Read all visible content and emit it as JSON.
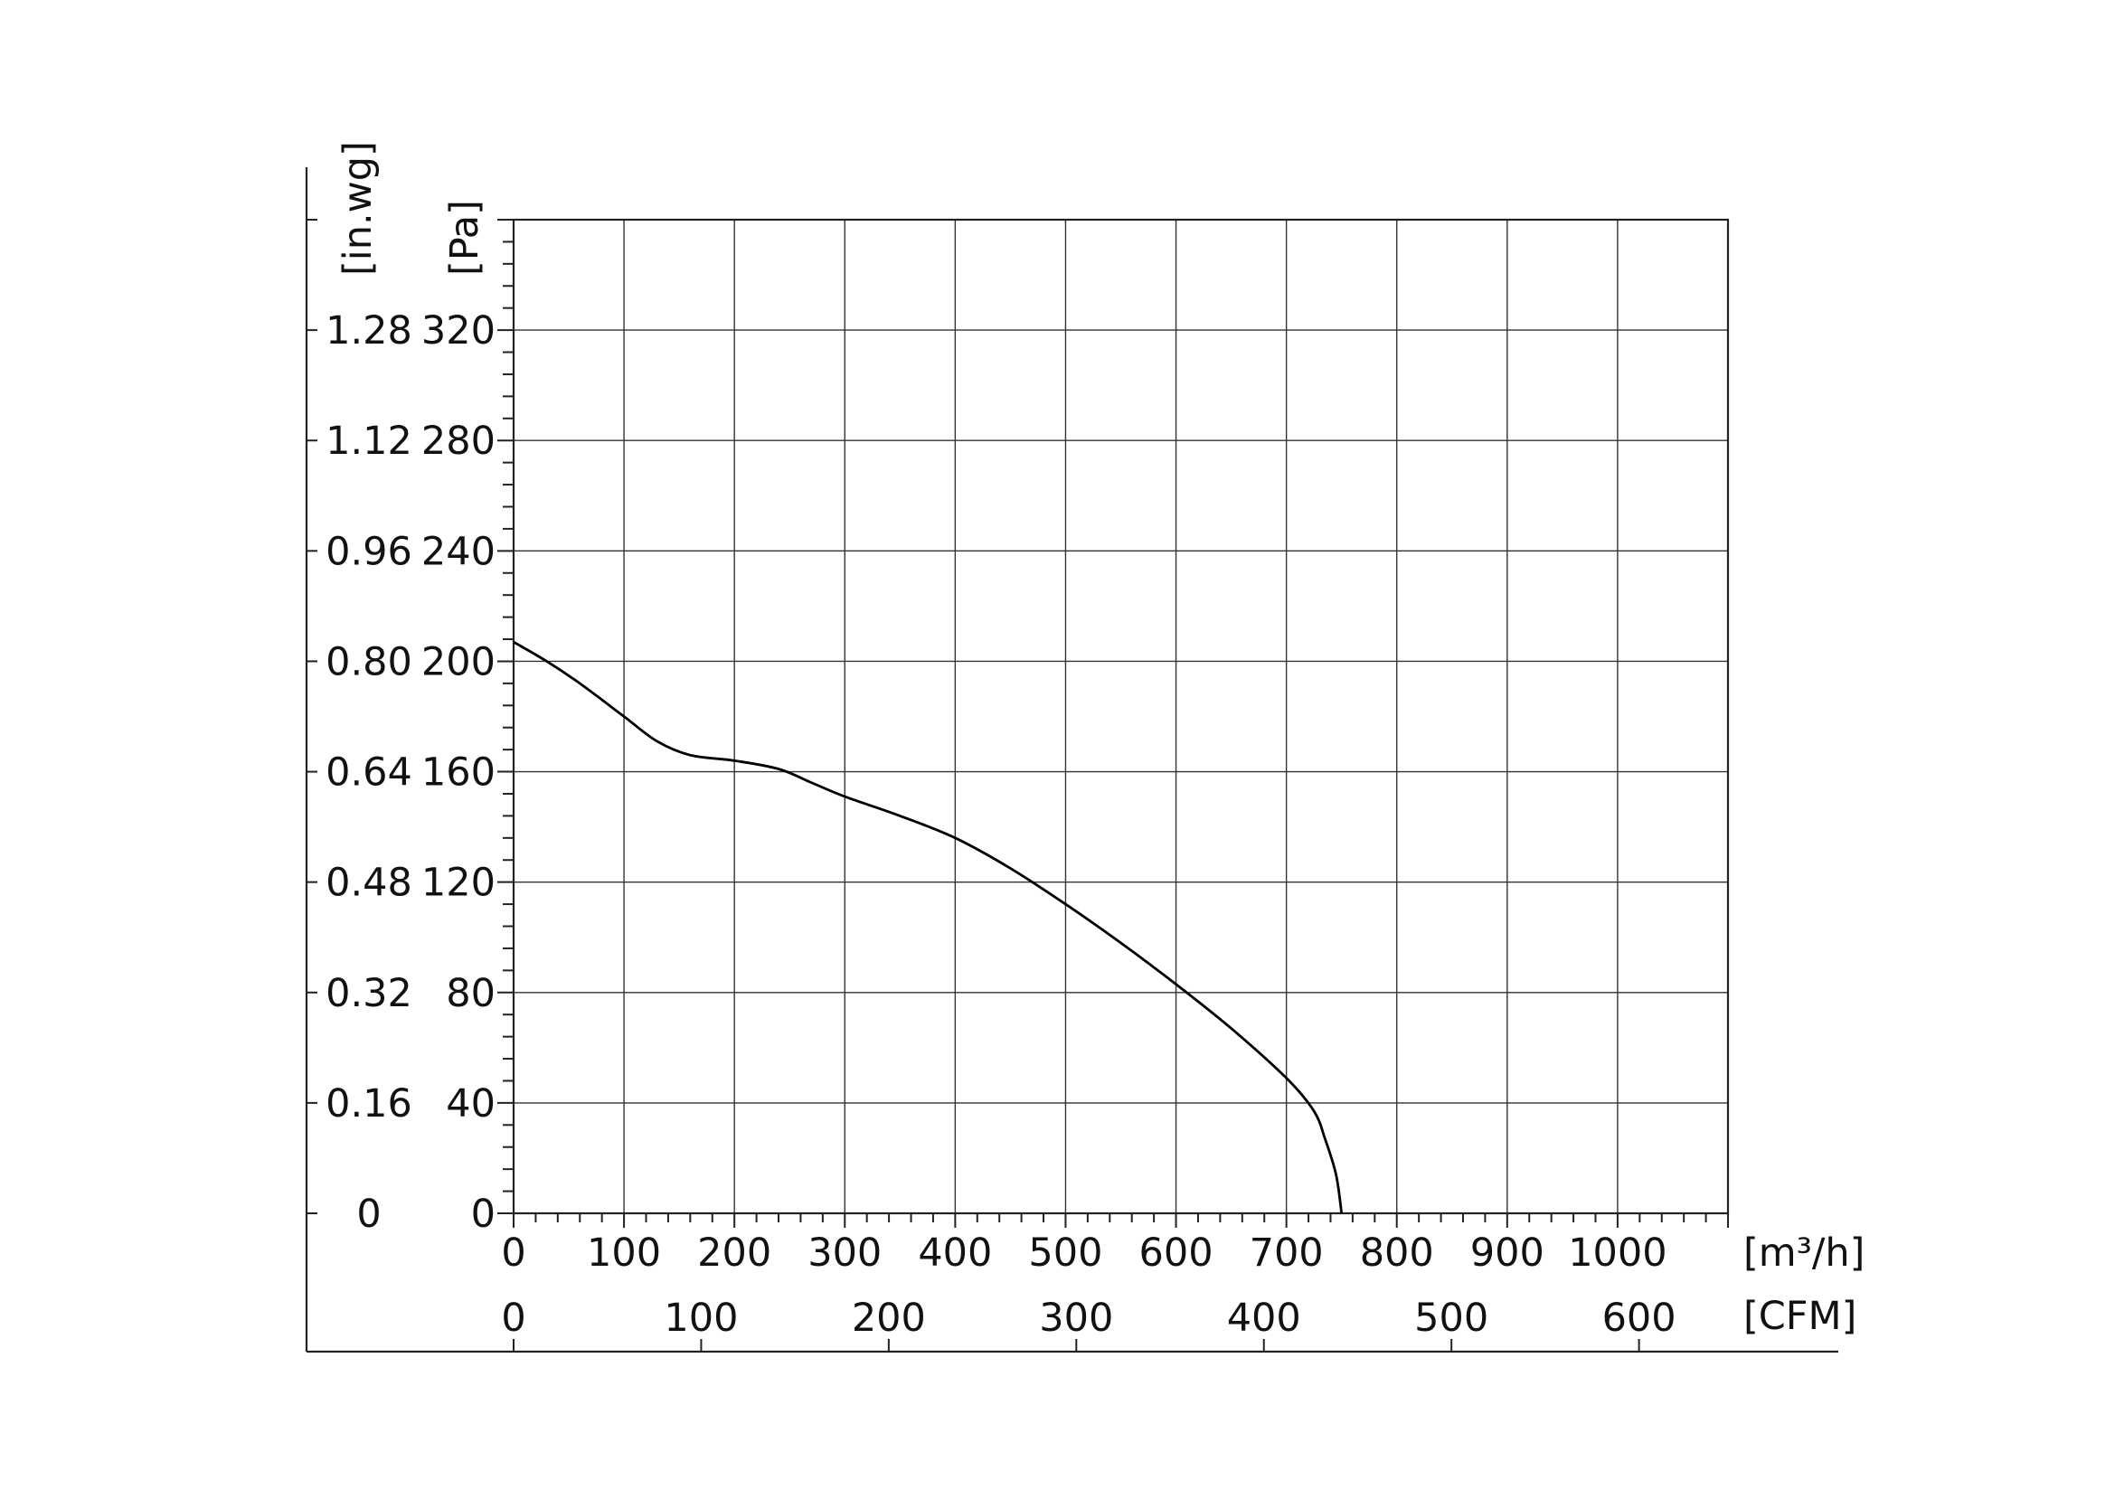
{
  "chart_data": {
    "type": "line",
    "title": "",
    "x_primary": {
      "unit": "[m³/h]",
      "range": [
        0,
        1100
      ],
      "ticks": [
        0,
        100,
        200,
        300,
        400,
        500,
        600,
        700,
        800,
        900,
        1000
      ],
      "tick_labels": [
        "0",
        "100",
        "200",
        "300",
        "400",
        "500",
        "600",
        "700",
        "800",
        "900",
        "1000"
      ]
    },
    "x_secondary": {
      "unit": "[CFM]",
      "ticks": [
        0,
        100,
        200,
        300,
        400,
        500,
        600
      ],
      "tick_labels": [
        "0",
        "100",
        "200",
        "300",
        "400",
        "500",
        "600"
      ]
    },
    "y_primary": {
      "unit": "[Pa]",
      "range": [
        0,
        360
      ],
      "ticks": [
        0,
        40,
        80,
        120,
        160,
        200,
        240,
        280,
        320
      ],
      "tick_labels": [
        "0",
        "40",
        "80",
        "120",
        "160",
        "200",
        "240",
        "280",
        "320"
      ]
    },
    "y_secondary": {
      "unit": "[in.wg]",
      "ticks": [
        0,
        0.16,
        0.32,
        0.48,
        0.64,
        0.8,
        0.96,
        1.12,
        1.28
      ],
      "tick_labels": [
        "0",
        "0.16",
        "0.32",
        "0.48",
        "0.64",
        "0.80",
        "0.96",
        "1.12",
        "1.28"
      ]
    },
    "grid": true,
    "series": [
      {
        "color": "#000000",
        "x": [
          0,
          30,
          60,
          100,
          130,
          160,
          200,
          240,
          270,
          300,
          350,
          400,
          450,
          500,
          550,
          600,
          650,
          700,
          725,
          735,
          745,
          750
        ],
        "y": [
          207,
          200,
          192,
          180,
          171,
          166,
          164,
          161,
          156,
          151,
          144,
          136,
          125,
          112,
          98,
          83,
          67,
          49,
          37,
          27,
          14,
          0
        ]
      }
    ]
  }
}
